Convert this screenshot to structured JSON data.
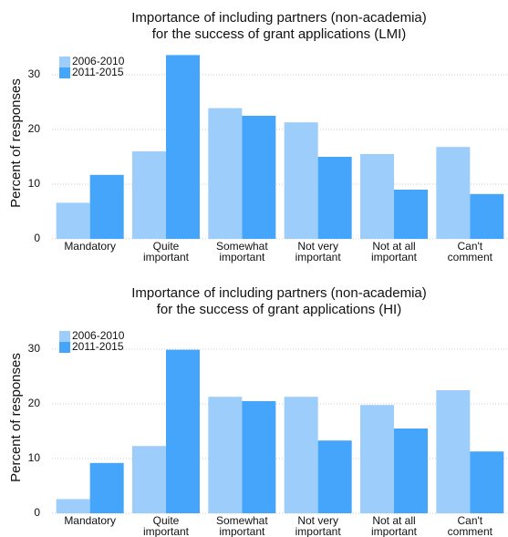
{
  "chart_data": [
    {
      "type": "bar",
      "title": [
        "Importance of including partners (non-academia)",
        "for the success of grant applications (LMI)"
      ],
      "y_label": "Percent of responses",
      "categories": [
        [
          "Mandatory"
        ],
        [
          "Quite",
          "important"
        ],
        [
          "Somewhat",
          "important"
        ],
        [
          "Not very",
          "important"
        ],
        [
          "Not at all",
          "important"
        ],
        [
          "Can't",
          "comment"
        ]
      ],
      "series": [
        {
          "name": "2006-2010",
          "color": "#9dcdfb",
          "values": [
            6.6,
            16.0,
            23.9,
            21.3,
            15.5,
            16.8
          ]
        },
        {
          "name": "2011-2015",
          "color": "#45a5fa",
          "values": [
            11.7,
            33.6,
            22.5,
            15.0,
            9.0,
            8.2
          ]
        }
      ],
      "ylim": [
        0,
        35
      ],
      "yticks": [
        0,
        10,
        20,
        30
      ],
      "grid": true,
      "legend": "top-left"
    },
    {
      "type": "bar",
      "title": [
        "Importance of including partners (non-academia)",
        "for the success of grant applications (HI)"
      ],
      "y_label": "Percent of responses",
      "categories": [
        [
          "Mandatory"
        ],
        [
          "Quite",
          "important"
        ],
        [
          "Somewhat",
          "important"
        ],
        [
          "Not very",
          "important"
        ],
        [
          "Not at all",
          "important"
        ],
        [
          "Can't",
          "comment"
        ]
      ],
      "series": [
        {
          "name": "2006-2010",
          "color": "#9dcdfb",
          "values": [
            2.6,
            12.3,
            21.3,
            21.3,
            19.8,
            22.5
          ]
        },
        {
          "name": "2011-2015",
          "color": "#45a5fa",
          "values": [
            9.2,
            29.9,
            20.5,
            13.3,
            15.5,
            11.3
          ]
        }
      ],
      "ylim": [
        0,
        35
      ],
      "yticks": [
        0,
        10,
        20,
        30
      ],
      "grid": true,
      "legend": "top-left"
    }
  ]
}
